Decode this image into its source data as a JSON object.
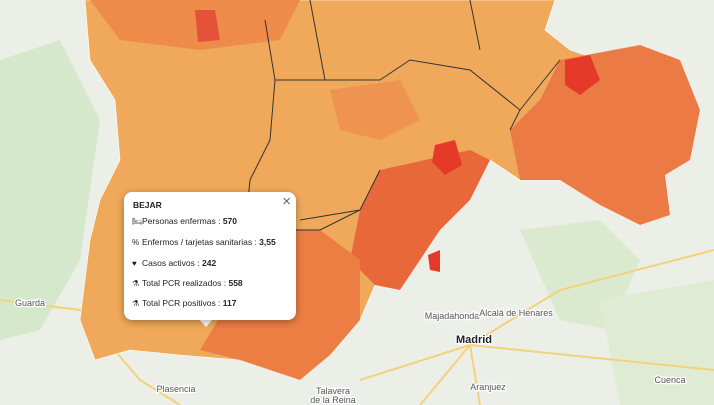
{
  "popup": {
    "title": "BEJAR",
    "close": "×",
    "rows": [
      {
        "label": "Personas enfermas :",
        "value": "570"
      },
      {
        "label": "Enfermos / tarjetas sanitarias :",
        "value": "3,55"
      },
      {
        "label": "Casos activos :",
        "value": "242"
      },
      {
        "label": "Total PCR realizados :",
        "value": "558"
      },
      {
        "label": "Total PCR positivos :",
        "value": "117"
      }
    ]
  },
  "map_labels": [
    "Guarda",
    "Majadahonda",
    "Alcalá de Henares",
    "Madrid",
    "Plasencia",
    "Talavera",
    "de la Reina",
    "Aranjuez",
    "Cuenca"
  ]
}
